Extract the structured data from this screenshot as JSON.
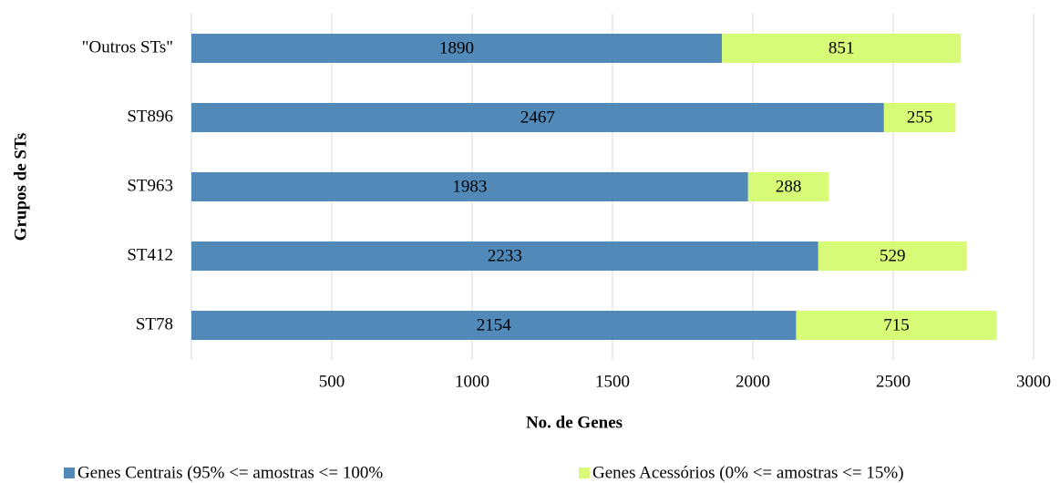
{
  "chart_data": {
    "type": "stacked_bar_horizontal",
    "xlabel": "No. de Genes",
    "ylabel": "Grupos de STs",
    "categories": [
      "\"Outros STs\"",
      "ST896",
      "ST963",
      "ST412",
      "ST78"
    ],
    "series": [
      {
        "name": "Genes Centrais (95% <= amostras <= 100%",
        "color": "#5189b8",
        "values": [
          1890,
          2467,
          1983,
          2233,
          2154
        ]
      },
      {
        "name": "Genes Acessórios (0% <= amostras <= 15%)",
        "color": "#d7fb77",
        "values": [
          851,
          255,
          288,
          529,
          715
        ]
      }
    ],
    "xlim": [
      0,
      3000
    ],
    "xticks": [
      500,
      1000,
      1500,
      2000,
      2500,
      3000
    ],
    "grid": true,
    "legend": "bottom"
  }
}
